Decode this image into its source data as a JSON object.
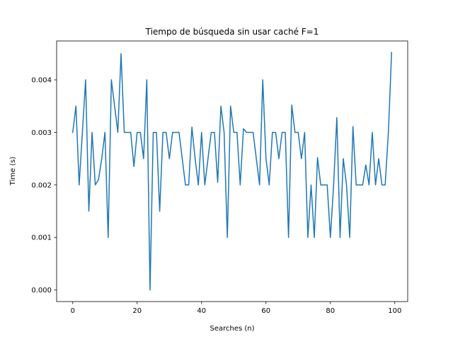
{
  "chart_data": {
    "type": "line",
    "title": "Tiempo de búsqueda sin usar caché F=1",
    "xlabel": "Searches (n)",
    "ylabel": "Time (s)",
    "xlim": [
      -5,
      104
    ],
    "ylim": [
      -0.00022,
      0.00474
    ],
    "x_ticks": [
      0,
      20,
      40,
      60,
      80,
      100
    ],
    "x_tick_labels": [
      "0",
      "20",
      "40",
      "60",
      "80",
      "100"
    ],
    "y_ticks": [
      0.0,
      0.001,
      0.002,
      0.003,
      0.004
    ],
    "y_tick_labels": [
      "0.000",
      "0.001",
      "0.002",
      "0.003",
      "0.004"
    ],
    "grid": false,
    "series": [
      {
        "color": "#1f77b4",
        "x": [
          0,
          1,
          2,
          3,
          4,
          5,
          6,
          7,
          8,
          9,
          10,
          11,
          12,
          13,
          14,
          15,
          16,
          17,
          18,
          19,
          20,
          21,
          22,
          23,
          24,
          25,
          26,
          27,
          28,
          29,
          30,
          31,
          32,
          33,
          34,
          35,
          36,
          37,
          38,
          39,
          40,
          41,
          42,
          43,
          44,
          45,
          46,
          47,
          48,
          49,
          50,
          51,
          52,
          53,
          54,
          55,
          56,
          57,
          58,
          59,
          60,
          61,
          62,
          63,
          64,
          65,
          66,
          67,
          68,
          69,
          70,
          71,
          72,
          73,
          74,
          75,
          76,
          77,
          78,
          79,
          80,
          81,
          82,
          83,
          84,
          85,
          86,
          87,
          88,
          89,
          90,
          91,
          92,
          93,
          94,
          95,
          96,
          97,
          98,
          99
        ],
        "values": [
          0.003,
          0.0035,
          0.002,
          0.003,
          0.004,
          0.0015,
          0.003,
          0.002,
          0.0021,
          0.0025,
          0.003,
          0.001,
          0.004,
          0.0035,
          0.003,
          0.0045,
          0.003,
          0.003,
          0.003,
          0.00235,
          0.003,
          0.003,
          0.0025,
          0.004,
          0.0,
          0.003,
          0.003,
          0.0015,
          0.003,
          0.003,
          0.0025,
          0.003,
          0.003,
          0.003,
          0.0025,
          0.002,
          0.002,
          0.0031,
          0.0025,
          0.002,
          0.003,
          0.002,
          0.0025,
          0.003,
          0.003,
          0.00205,
          0.0035,
          0.003,
          0.001,
          0.0035,
          0.003,
          0.003,
          0.002,
          0.00307,
          0.003,
          0.003,
          0.003,
          0.0025,
          0.002,
          0.004,
          0.0025,
          0.002,
          0.003,
          0.003,
          0.0025,
          0.003,
          0.003,
          0.001,
          0.00352,
          0.003,
          0.003,
          0.0025,
          0.003,
          0.001,
          0.002,
          0.001,
          0.00252,
          0.002,
          0.002,
          0.002,
          0.001,
          0.002,
          0.00328,
          0.001,
          0.0025,
          0.002,
          0.001,
          0.00311,
          0.002,
          0.002,
          0.002,
          0.00238,
          0.002,
          0.003,
          0.002,
          0.0025,
          0.002,
          0.002,
          0.003,
          0.00452
        ]
      }
    ]
  }
}
